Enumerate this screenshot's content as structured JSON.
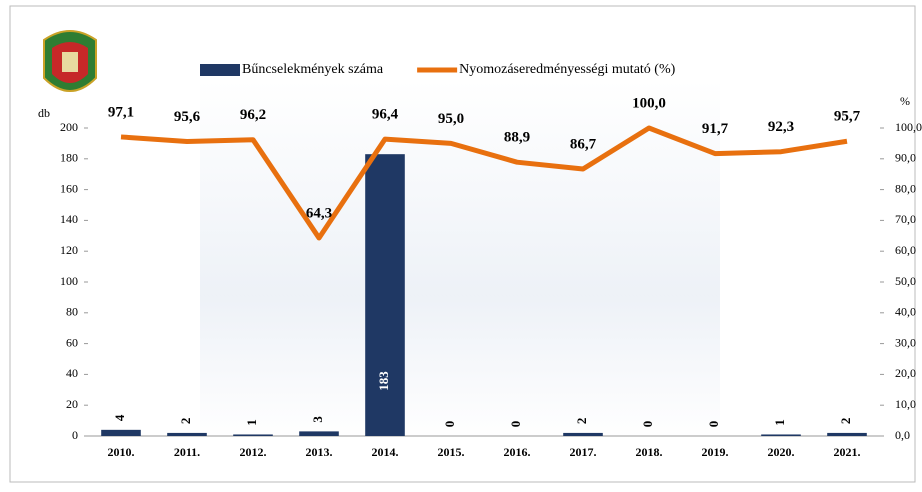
{
  "chart_data": {
    "type": "bar",
    "y_axis_label": "db",
    "y2_axis_label": "%",
    "categories": [
      "2010.",
      "2011.",
      "2012.",
      "2013.",
      "2014.",
      "2015.",
      "2016.",
      "2017.",
      "2018.",
      "2019.",
      "2020.",
      "2021."
    ],
    "series": [
      {
        "name": "Bűncselekmények száma",
        "type": "bar",
        "color": "#1f3864",
        "values": [
          4,
          2,
          1,
          3,
          183,
          0,
          0,
          2,
          0,
          0,
          1,
          2
        ]
      },
      {
        "name": "Nyomozáseredményességi mutató (%)",
        "type": "line",
        "axis": "y2",
        "color": "#e8700f",
        "values": [
          97.1,
          95.6,
          96.2,
          64.3,
          96.4,
          95.0,
          88.9,
          86.7,
          100.0,
          91.7,
          92.3,
          95.7
        ],
        "value_labels": [
          "97,1",
          "95,6",
          "96,2",
          "64,3",
          "96,4",
          "95,0",
          "88,9",
          "86,7",
          "100,0",
          "91,7",
          "92,3",
          "95,7"
        ]
      }
    ],
    "ylim": [
      0,
      200
    ],
    "yticks": [
      0,
      20,
      40,
      60,
      80,
      100,
      120,
      140,
      160,
      180,
      200
    ],
    "y2lim": [
      0,
      100
    ],
    "y2ticks": [
      {
        "value": 0,
        "label": "0,0"
      },
      {
        "value": 10,
        "label": "10,0"
      },
      {
        "value": 20,
        "label": "20,0"
      },
      {
        "value": 30,
        "label": "30,0"
      },
      {
        "value": 40,
        "label": "40,0"
      },
      {
        "value": 50,
        "label": "50,0"
      },
      {
        "value": 60,
        "label": "60,0"
      },
      {
        "value": 70,
        "label": "70,0"
      },
      {
        "value": 80,
        "label": "80,0"
      },
      {
        "value": 90,
        "label": "90,0"
      },
      {
        "value": 100,
        "label": "100,0"
      }
    ],
    "grid": false
  }
}
